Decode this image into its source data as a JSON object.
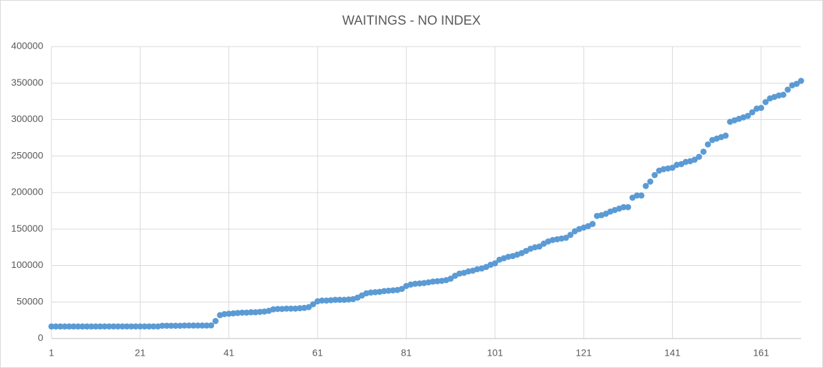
{
  "chart_data": {
    "type": "scatter",
    "title": "WAITINGS - NO INDEX",
    "x": [
      1,
      2,
      3,
      4,
      5,
      6,
      7,
      8,
      9,
      10,
      11,
      12,
      13,
      14,
      15,
      16,
      17,
      18,
      19,
      20,
      21,
      22,
      23,
      24,
      25,
      26,
      27,
      28,
      29,
      30,
      31,
      32,
      33,
      34,
      35,
      36,
      37,
      38,
      39,
      40,
      41,
      42,
      43,
      44,
      45,
      46,
      47,
      48,
      49,
      50,
      51,
      52,
      53,
      54,
      55,
      56,
      57,
      58,
      59,
      60,
      61,
      62,
      63,
      64,
      65,
      66,
      67,
      68,
      69,
      70,
      71,
      72,
      73,
      74,
      75,
      76,
      77,
      78,
      79,
      80,
      81,
      82,
      83,
      84,
      85,
      86,
      87,
      88,
      89,
      90,
      91,
      92,
      93,
      94,
      95,
      96,
      97,
      98,
      99,
      100,
      101,
      102,
      103,
      104,
      105,
      106,
      107,
      108,
      109,
      110,
      111,
      112,
      113,
      114,
      115,
      116,
      117,
      118,
      119,
      120,
      121,
      122,
      123,
      124,
      125,
      126,
      127,
      128,
      129,
      130,
      131,
      132,
      133,
      134,
      135,
      136,
      137,
      138,
      139,
      140,
      141,
      142,
      143,
      144,
      145,
      146,
      147,
      148,
      149,
      150,
      151,
      152,
      153,
      154,
      155,
      156,
      157,
      158,
      159,
      160,
      161,
      162,
      163,
      164,
      165,
      166,
      167,
      168,
      169,
      170
    ],
    "series": [
      {
        "color": "#5b9bd5",
        "values": [
          16500,
          16500,
          16500,
          16500,
          16500,
          16500,
          16500,
          16500,
          16500,
          16500,
          16500,
          16500,
          16600,
          16600,
          16600,
          16600,
          16600,
          16600,
          16600,
          16600,
          16600,
          16600,
          16600,
          16600,
          16600,
          17500,
          17500,
          17500,
          17500,
          17500,
          17800,
          17800,
          17800,
          17800,
          17800,
          17800,
          18000,
          24000,
          32000,
          33500,
          34000,
          34500,
          35000,
          35500,
          35500,
          36000,
          36000,
          36500,
          37000,
          38000,
          40000,
          40500,
          40500,
          41000,
          41000,
          41000,
          41500,
          42000,
          43000,
          47000,
          51000,
          52000,
          52000,
          52500,
          53000,
          53000,
          53000,
          53500,
          54000,
          56000,
          59000,
          62000,
          63000,
          63500,
          64000,
          65000,
          65500,
          66000,
          66500,
          68000,
          72000,
          74000,
          75000,
          75500,
          76000,
          77000,
          78000,
          78500,
          79000,
          80000,
          82000,
          86000,
          89000,
          90000,
          92000,
          93000,
          95000,
          96000,
          98000,
          101000,
          103000,
          108000,
          110000,
          112000,
          113000,
          115000,
          117000,
          120000,
          123000,
          125000,
          126000,
          130000,
          133000,
          135000,
          136000,
          137000,
          138000,
          142000,
          147000,
          150000,
          152000,
          154000,
          157000,
          168000,
          169000,
          171000,
          174000,
          176000,
          178000,
          180000,
          180000,
          193000,
          196000,
          196000,
          209000,
          215000,
          224000,
          230000,
          232000,
          233000,
          234000,
          238000,
          239000,
          242000,
          243000,
          245000,
          249000,
          256000,
          266000,
          272000,
          274000,
          276000,
          278000,
          297000,
          299000,
          301000,
          303000,
          305000,
          310000,
          315000,
          316000,
          324000,
          329000,
          331000,
          333000,
          334000,
          341000,
          347000,
          349000,
          353000
        ]
      }
    ],
    "xlim": [
      1,
      170
    ],
    "xticks": [
      1,
      21,
      41,
      61,
      81,
      101,
      121,
      141,
      161
    ],
    "ylim": [
      0,
      400000
    ],
    "yticks": [
      0,
      50000,
      100000,
      150000,
      200000,
      250000,
      300000,
      350000,
      400000
    ],
    "grid": true
  }
}
